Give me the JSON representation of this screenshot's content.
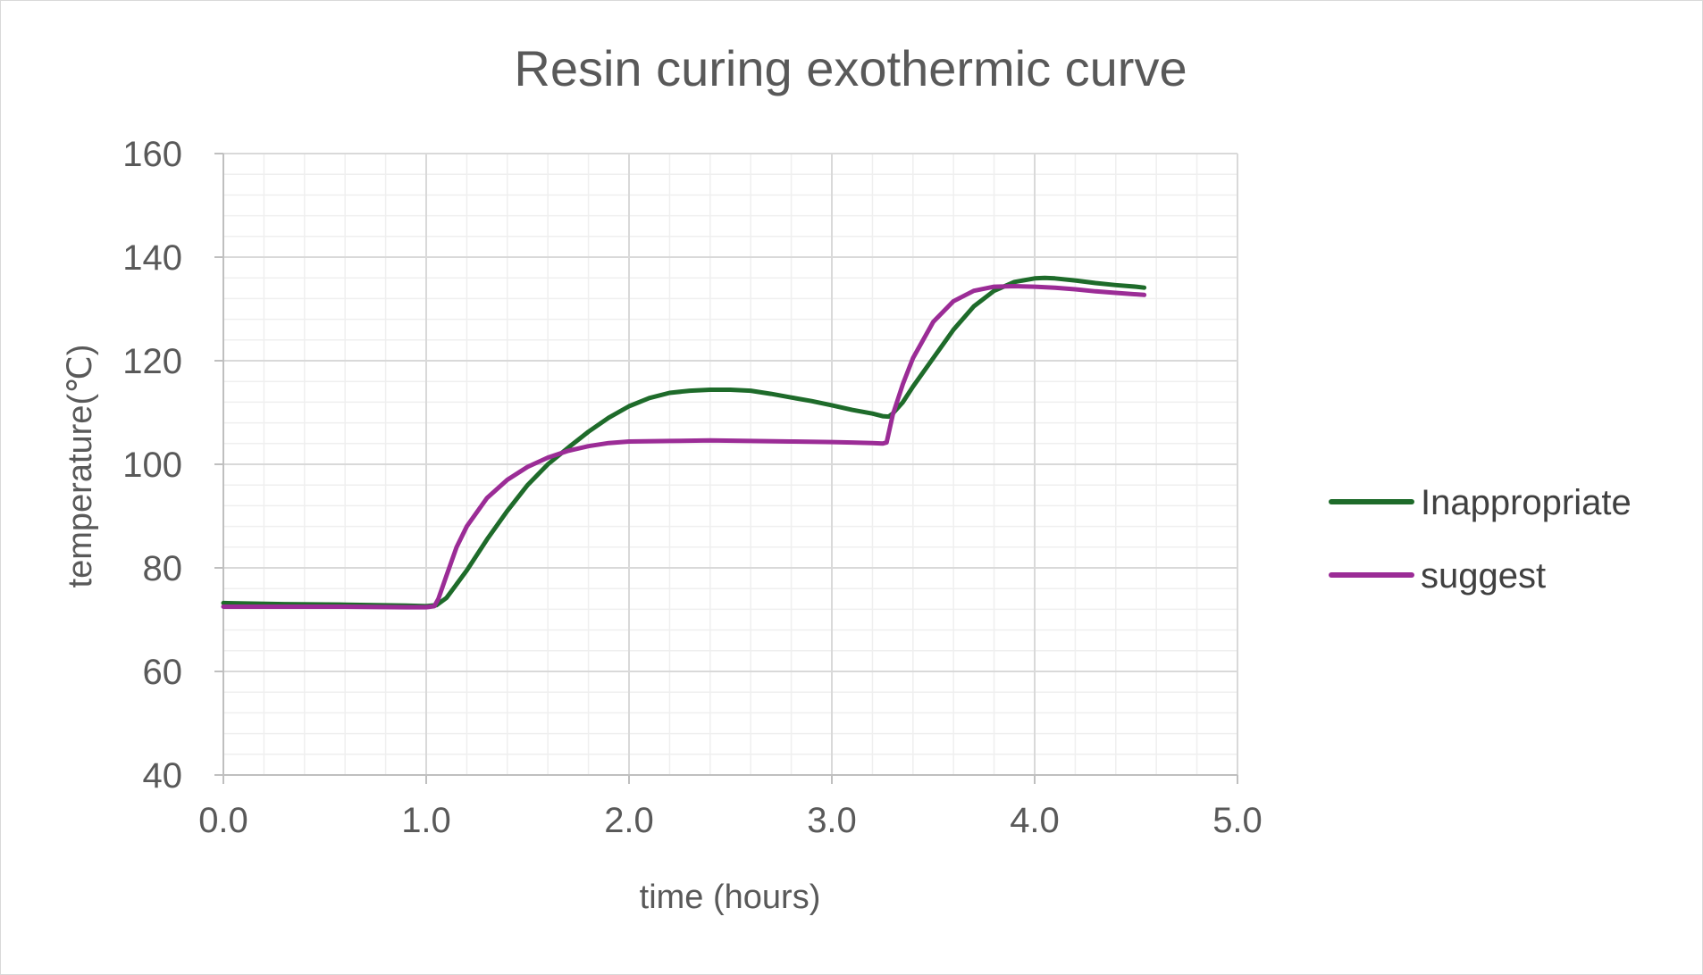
{
  "chart_data": {
    "type": "line",
    "title": "Resin curing exothermic curve",
    "xlabel": "time (hours)",
    "ylabel": "temperature(℃)",
    "xlim": [
      0,
      5
    ],
    "ylim": [
      40,
      160
    ],
    "x_major_step": 1.0,
    "y_major_step": 20,
    "x_minor_step": 0.2,
    "y_minor_step": 4,
    "x_tick_labels": [
      "0.0",
      "1.0",
      "2.0",
      "3.0",
      "4.0",
      "5.0"
    ],
    "y_tick_labels": [
      "40",
      "60",
      "80",
      "100",
      "120",
      "140",
      "160"
    ],
    "grid": "major and minor",
    "legend_position": "right",
    "series": [
      {
        "name": "Inappropriate",
        "color": "#1e6b2a",
        "x": [
          0,
          0.3,
          0.6,
          0.9,
          1.0,
          1.05,
          1.1,
          1.2,
          1.3,
          1.4,
          1.5,
          1.6,
          1.7,
          1.8,
          1.9,
          2.0,
          2.1,
          2.2,
          2.3,
          2.4,
          2.5,
          2.6,
          2.7,
          2.8,
          2.9,
          3.0,
          3.1,
          3.2,
          3.25,
          3.28,
          3.3,
          3.35,
          3.4,
          3.5,
          3.6,
          3.7,
          3.8,
          3.9,
          4.0,
          4.05,
          4.1,
          4.2,
          4.3,
          4.4,
          4.5,
          4.54
        ],
        "y": [
          73.2,
          73.0,
          72.9,
          72.7,
          72.6,
          72.8,
          74.2,
          79.5,
          85.5,
          91.0,
          96.0,
          100.0,
          103.2,
          106.3,
          109.0,
          111.2,
          112.8,
          113.8,
          114.2,
          114.4,
          114.4,
          114.2,
          113.6,
          112.9,
          112.2,
          111.4,
          110.5,
          109.8,
          109.3,
          109.2,
          109.8,
          112.0,
          115.0,
          120.5,
          126.0,
          130.5,
          133.5,
          135.2,
          135.9,
          136.0,
          135.9,
          135.5,
          135.0,
          134.6,
          134.3,
          134.1
        ]
      },
      {
        "name": "suggest",
        "color": "#9b2c96",
        "x": [
          0,
          0.3,
          0.6,
          0.9,
          1.0,
          1.04,
          1.06,
          1.1,
          1.15,
          1.2,
          1.3,
          1.4,
          1.5,
          1.6,
          1.7,
          1.8,
          1.9,
          2.0,
          2.2,
          2.4,
          2.6,
          2.8,
          3.0,
          3.1,
          3.2,
          3.25,
          3.27,
          3.3,
          3.35,
          3.4,
          3.5,
          3.6,
          3.7,
          3.8,
          3.9,
          4.0,
          4.1,
          4.2,
          4.3,
          4.4,
          4.54
        ],
        "y": [
          72.5,
          72.5,
          72.5,
          72.4,
          72.4,
          72.6,
          74.0,
          78.5,
          84.0,
          88.0,
          93.5,
          97.0,
          99.5,
          101.3,
          102.6,
          103.5,
          104.1,
          104.4,
          104.5,
          104.6,
          104.5,
          104.4,
          104.3,
          104.2,
          104.1,
          104.0,
          104.2,
          109.5,
          115.5,
          120.5,
          127.5,
          131.5,
          133.5,
          134.3,
          134.4,
          134.3,
          134.1,
          133.8,
          133.4,
          133.1,
          132.7
        ]
      }
    ]
  }
}
